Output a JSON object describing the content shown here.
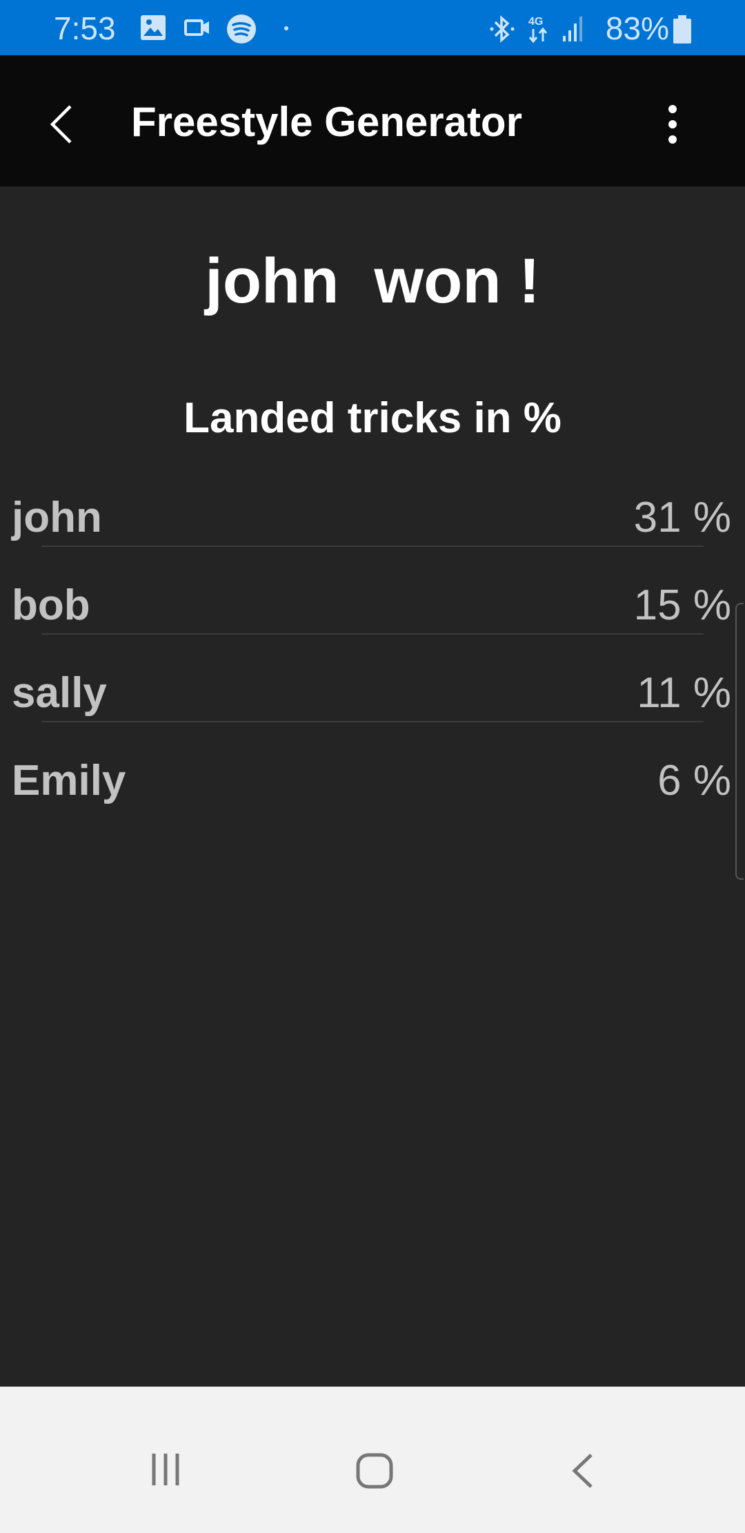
{
  "status_bar": {
    "time": "7:53",
    "battery": "83%",
    "network": "4G",
    "icons": [
      "gallery-icon",
      "video-icon",
      "spotify-icon",
      "bluetooth-icon",
      "signal-icon",
      "battery-icon"
    ]
  },
  "app_bar": {
    "title": "Freestyle Generator",
    "icons": [
      "back-arrow-icon",
      "more-vert-icon"
    ]
  },
  "result": {
    "winner_text": "john  won !",
    "subtitle": "Landed tricks in %"
  },
  "scores": [
    {
      "name": "john",
      "percent": "31 %"
    },
    {
      "name": "bob",
      "percent": "15 %"
    },
    {
      "name": "sally",
      "percent": "11 %"
    },
    {
      "name": "Emily",
      "percent": "6 %"
    }
  ],
  "nav_bar": {
    "icons": [
      "recents-icon",
      "home-icon",
      "back-icon"
    ]
  },
  "colors": {
    "status_bar": "#0074d4",
    "app_bar": "#0a0a0a",
    "background": "#242424",
    "text_muted": "#c2c2c2"
  }
}
